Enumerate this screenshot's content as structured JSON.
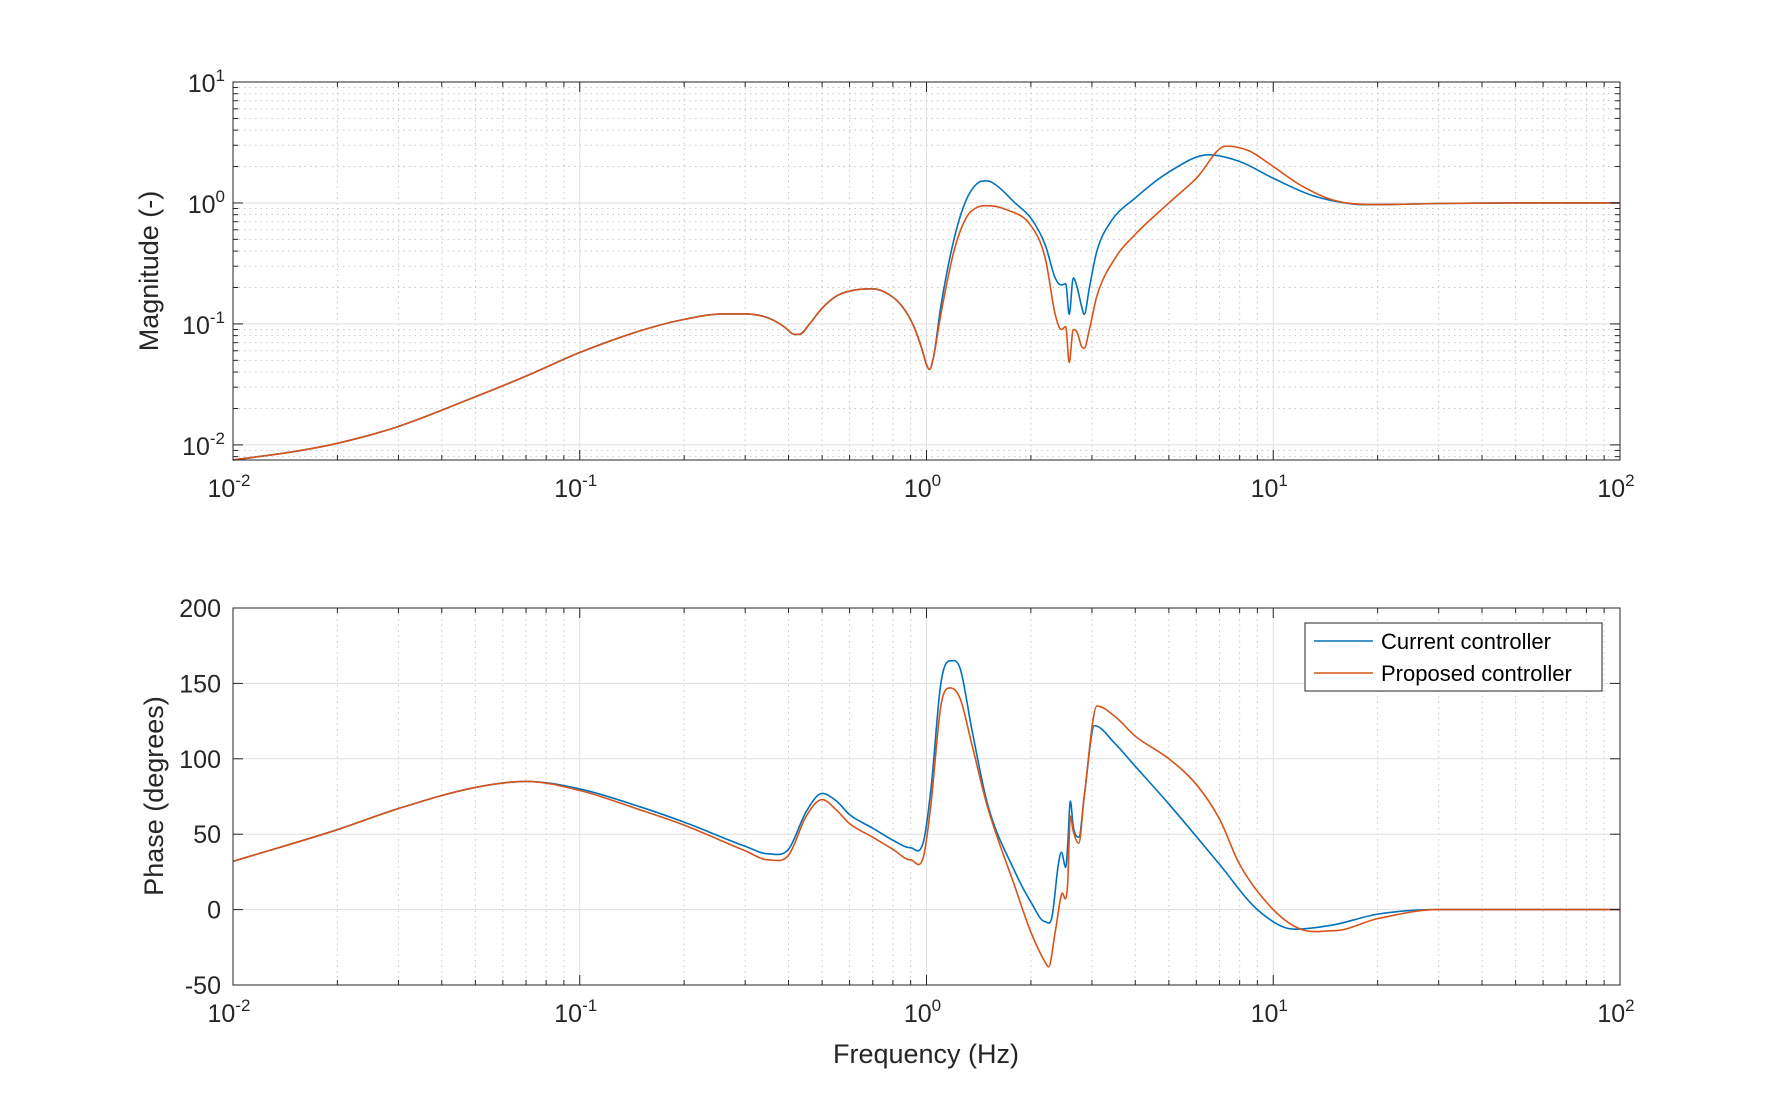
{
  "chart_data": [
    {
      "type": "line",
      "subplot": "magnitude",
      "xscale": "log",
      "yscale": "log",
      "xlim": [
        0.01,
        100
      ],
      "ylim": [
        0.0075,
        10
      ],
      "ylabel": "Magnitude (-)",
      "xlabel": "",
      "grid": true,
      "x_ticks": [
        {
          "base": "10",
          "exp": "-2"
        },
        {
          "base": "10",
          "exp": "-1"
        },
        {
          "base": "10",
          "exp": "0"
        },
        {
          "base": "10",
          "exp": "1"
        },
        {
          "base": "10",
          "exp": "2"
        }
      ],
      "y_ticks": [
        {
          "base": "10",
          "exp": "-2",
          "value": 0.01
        },
        {
          "base": "10",
          "exp": "-1",
          "value": 0.1
        },
        {
          "base": "10",
          "exp": "0",
          "value": 1
        },
        {
          "base": "10",
          "exp": "1",
          "value": 10
        }
      ],
      "series": [
        {
          "name": "Current controller",
          "color": "#0072BD",
          "points": [
            [
              0.01,
              0.0075
            ],
            [
              0.015,
              0.0088
            ],
            [
              0.02,
              0.0103
            ],
            [
              0.03,
              0.0142
            ],
            [
              0.05,
              0.025
            ],
            [
              0.07,
              0.037
            ],
            [
              0.1,
              0.058
            ],
            [
              0.15,
              0.088
            ],
            [
              0.2,
              0.109
            ],
            [
              0.26,
              0.121
            ],
            [
              0.3,
              0.121
            ],
            [
              0.35,
              0.112
            ],
            [
              0.39,
              0.094
            ],
            [
              0.41,
              0.083
            ],
            [
              0.43,
              0.082
            ],
            [
              0.46,
              0.1
            ],
            [
              0.5,
              0.135
            ],
            [
              0.55,
              0.17
            ],
            [
              0.6,
              0.187
            ],
            [
              0.7,
              0.195
            ],
            [
              0.78,
              0.175
            ],
            [
              0.85,
              0.14
            ],
            [
              0.92,
              0.095
            ],
            [
              0.97,
              0.062
            ],
            [
              1.0,
              0.046
            ],
            [
              1.02,
              0.042
            ],
            [
              1.05,
              0.055
            ],
            [
              1.1,
              0.14
            ],
            [
              1.2,
              0.5
            ],
            [
              1.3,
              1.05
            ],
            [
              1.4,
              1.45
            ],
            [
              1.5,
              1.52
            ],
            [
              1.6,
              1.38
            ],
            [
              1.8,
              1.0
            ],
            [
              2.0,
              0.75
            ],
            [
              2.2,
              0.45
            ],
            [
              2.35,
              0.24
            ],
            [
              2.45,
              0.21
            ],
            [
              2.52,
              0.215
            ],
            [
              2.58,
              0.12
            ],
            [
              2.65,
              0.24
            ],
            [
              2.72,
              0.2
            ],
            [
              2.8,
              0.14
            ],
            [
              2.85,
              0.12
            ],
            [
              2.95,
              0.2
            ],
            [
              3.1,
              0.4
            ],
            [
              3.4,
              0.7
            ],
            [
              4,
              1.1
            ],
            [
              5,
              1.8
            ],
            [
              6.5,
              2.5
            ],
            [
              8,
              2.2
            ],
            [
              10,
              1.6
            ],
            [
              13,
              1.15
            ],
            [
              17,
              0.98
            ],
            [
              20,
              0.97
            ],
            [
              30,
              0.99
            ],
            [
              50,
              1.0
            ],
            [
              100,
              1.0
            ]
          ]
        },
        {
          "name": "Proposed controller",
          "color": "#D95319",
          "points": [
            [
              0.01,
              0.0075
            ],
            [
              0.015,
              0.0088
            ],
            [
              0.02,
              0.0103
            ],
            [
              0.03,
              0.0142
            ],
            [
              0.05,
              0.025
            ],
            [
              0.07,
              0.037
            ],
            [
              0.1,
              0.058
            ],
            [
              0.15,
              0.088
            ],
            [
              0.2,
              0.109
            ],
            [
              0.26,
              0.121
            ],
            [
              0.3,
              0.121
            ],
            [
              0.35,
              0.112
            ],
            [
              0.39,
              0.094
            ],
            [
              0.41,
              0.083
            ],
            [
              0.43,
              0.082
            ],
            [
              0.46,
              0.1
            ],
            [
              0.5,
              0.135
            ],
            [
              0.55,
              0.17
            ],
            [
              0.6,
              0.187
            ],
            [
              0.7,
              0.195
            ],
            [
              0.78,
              0.175
            ],
            [
              0.85,
              0.14
            ],
            [
              0.92,
              0.095
            ],
            [
              0.97,
              0.062
            ],
            [
              1.0,
              0.046
            ],
            [
              1.02,
              0.042
            ],
            [
              1.05,
              0.055
            ],
            [
              1.1,
              0.12
            ],
            [
              1.2,
              0.4
            ],
            [
              1.3,
              0.75
            ],
            [
              1.4,
              0.92
            ],
            [
              1.5,
              0.95
            ],
            [
              1.7,
              0.88
            ],
            [
              2.0,
              0.65
            ],
            [
              2.2,
              0.35
            ],
            [
              2.35,
              0.12
            ],
            [
              2.45,
              0.09
            ],
            [
              2.52,
              0.095
            ],
            [
              2.58,
              0.048
            ],
            [
              2.65,
              0.09
            ],
            [
              2.72,
              0.085
            ],
            [
              2.8,
              0.065
            ],
            [
              2.85,
              0.063
            ],
            [
              2.95,
              0.09
            ],
            [
              3.1,
              0.17
            ],
            [
              3.5,
              0.35
            ],
            [
              4,
              0.55
            ],
            [
              5,
              1.0
            ],
            [
              6,
              1.6
            ],
            [
              7.3,
              2.95
            ],
            [
              8.5,
              2.7
            ],
            [
              10,
              2.0
            ],
            [
              12,
              1.4
            ],
            [
              15,
              1.05
            ],
            [
              20,
              0.97
            ],
            [
              30,
              0.99
            ],
            [
              50,
              1.0
            ],
            [
              100,
              1.0
            ]
          ]
        }
      ]
    },
    {
      "type": "line",
      "subplot": "phase",
      "xscale": "log",
      "yscale": "linear",
      "xlim": [
        0.01,
        100
      ],
      "ylim": [
        -50,
        200
      ],
      "ylabel": "Phase (degrees)",
      "xlabel": "Frequency (Hz)",
      "grid": true,
      "legend_position": "top-right",
      "x_ticks": [
        {
          "base": "10",
          "exp": "-2"
        },
        {
          "base": "10",
          "exp": "-1"
        },
        {
          "base": "10",
          "exp": "0"
        },
        {
          "base": "10",
          "exp": "1"
        },
        {
          "base": "10",
          "exp": "2"
        }
      ],
      "y_ticks": [
        "-50",
        "0",
        "50",
        "100",
        "150",
        "200"
      ],
      "series": [
        {
          "name": "Current controller",
          "color": "#0072BD",
          "points": [
            [
              0.01,
              32
            ],
            [
              0.02,
              53
            ],
            [
              0.03,
              67
            ],
            [
              0.05,
              81
            ],
            [
              0.07,
              85
            ],
            [
              0.1,
              80
            ],
            [
              0.15,
              68
            ],
            [
              0.2,
              58
            ],
            [
              0.3,
              42
            ],
            [
              0.35,
              37
            ],
            [
              0.4,
              40
            ],
            [
              0.45,
              65
            ],
            [
              0.5,
              77
            ],
            [
              0.55,
              72
            ],
            [
              0.6,
              63
            ],
            [
              0.7,
              54
            ],
            [
              0.8,
              46
            ],
            [
              0.9,
              41
            ],
            [
              0.98,
              45
            ],
            [
              1.03,
              80
            ],
            [
              1.1,
              150
            ],
            [
              1.17,
              165
            ],
            [
              1.25,
              160
            ],
            [
              1.35,
              120
            ],
            [
              1.5,
              70
            ],
            [
              1.8,
              25
            ],
            [
              2.0,
              5
            ],
            [
              2.2,
              -8
            ],
            [
              2.3,
              -5
            ],
            [
              2.4,
              30
            ],
            [
              2.45,
              38
            ],
            [
              2.52,
              28
            ],
            [
              2.55,
              40
            ],
            [
              2.6,
              72
            ],
            [
              2.65,
              55
            ],
            [
              2.75,
              48
            ],
            [
              2.85,
              75
            ],
            [
              3.05,
              122
            ],
            [
              3.5,
              110
            ],
            [
              4,
              95
            ],
            [
              5,
              70
            ],
            [
              7,
              30
            ],
            [
              9,
              0
            ],
            [
              11.5,
              -13
            ],
            [
              15,
              -10
            ],
            [
              20,
              -3
            ],
            [
              30,
              0
            ],
            [
              100,
              0
            ]
          ]
        },
        {
          "name": "Proposed controller",
          "color": "#D95319",
          "points": [
            [
              0.01,
              32
            ],
            [
              0.02,
              53
            ],
            [
              0.03,
              67
            ],
            [
              0.05,
              81
            ],
            [
              0.07,
              85
            ],
            [
              0.1,
              79
            ],
            [
              0.15,
              66
            ],
            [
              0.2,
              56
            ],
            [
              0.3,
              39
            ],
            [
              0.35,
              33
            ],
            [
              0.4,
              36
            ],
            [
              0.45,
              62
            ],
            [
              0.5,
              73
            ],
            [
              0.55,
              66
            ],
            [
              0.6,
              57
            ],
            [
              0.7,
              48
            ],
            [
              0.8,
              40
            ],
            [
              0.9,
              33
            ],
            [
              0.98,
              35
            ],
            [
              1.03,
              70
            ],
            [
              1.1,
              135
            ],
            [
              1.17,
              147
            ],
            [
              1.25,
              140
            ],
            [
              1.35,
              110
            ],
            [
              1.5,
              68
            ],
            [
              1.8,
              15
            ],
            [
              2.0,
              -15
            ],
            [
              2.2,
              -35
            ],
            [
              2.25,
              -38
            ],
            [
              2.35,
              -15
            ],
            [
              2.45,
              10
            ],
            [
              2.55,
              15
            ],
            [
              2.6,
              62
            ],
            [
              2.65,
              52
            ],
            [
              2.75,
              44
            ],
            [
              2.85,
              75
            ],
            [
              3.1,
              135
            ],
            [
              3.5,
              128
            ],
            [
              4,
              115
            ],
            [
              5,
              100
            ],
            [
              6,
              83
            ],
            [
              7,
              60
            ],
            [
              8,
              30
            ],
            [
              10,
              0
            ],
            [
              12,
              -13
            ],
            [
              15,
              -14
            ],
            [
              20,
              -6
            ],
            [
              30,
              0
            ],
            [
              100,
              0
            ]
          ]
        }
      ]
    }
  ]
}
